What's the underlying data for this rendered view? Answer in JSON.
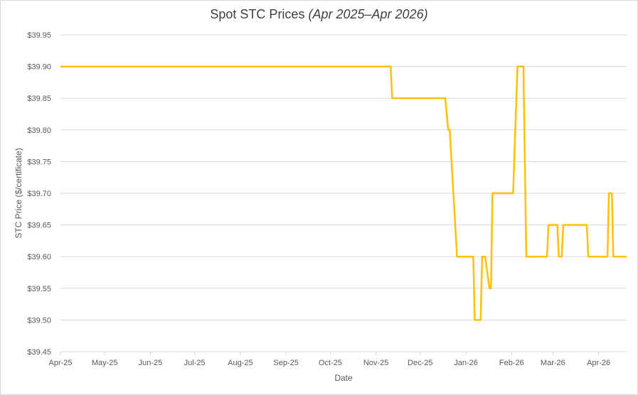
{
  "chart_data": {
    "type": "line",
    "title": "Spot STC Prices",
    "subtitle": "(Apr 2025–Apr 2026)",
    "xlabel": "Date",
    "ylabel": "STC Price ($/certificate)",
    "ylim": [
      39.45,
      39.95
    ],
    "y_ticks": [
      39.45,
      39.5,
      39.55,
      39.6,
      39.65,
      39.7,
      39.75,
      39.8,
      39.85,
      39.9,
      39.95
    ],
    "y_tick_labels": [
      "$39.45",
      "$39.50",
      "$39.55",
      "$39.60",
      "$39.65",
      "$39.70",
      "$39.75",
      "$39.80",
      "$39.85",
      "$39.90",
      "$39.95"
    ],
    "x_ticks": [
      "2025-04-01",
      "2025-05-01",
      "2025-06-01",
      "2025-07-01",
      "2025-08-01",
      "2025-09-01",
      "2025-10-01",
      "2025-11-01",
      "2025-12-01",
      "2026-01-01",
      "2026-02-01",
      "2026-03-01",
      "2026-04-01"
    ],
    "x_tick_labels": [
      "Apr-25",
      "May-25",
      "Jun-25",
      "Jul-25",
      "Aug-25",
      "Sep-25",
      "Oct-25",
      "Nov-25",
      "Dec-25",
      "Jan-26",
      "Feb-26",
      "Mar-26",
      "Apr-26"
    ],
    "xlim": [
      "2025-04-01",
      "2026-04-20"
    ],
    "grid": true,
    "line_color": "#FFC000",
    "series": [
      {
        "x": [
          "2025-04-01",
          "2025-11-11",
          "2025-11-12",
          "2025-12-18",
          "2025-12-20",
          "2025-12-21",
          "2025-12-26",
          "2025-12-27",
          "2026-01-06",
          "2026-01-07",
          "2026-01-11",
          "2026-01-12",
          "2026-01-14",
          "2026-01-17",
          "2026-01-18",
          "2026-01-19",
          "2026-02-02",
          "2026-02-05",
          "2026-02-09",
          "2026-02-11",
          "2026-02-12",
          "2026-02-25",
          "2026-02-26",
          "2026-03-04",
          "2026-03-05",
          "2026-03-07",
          "2026-03-08",
          "2026-03-24",
          "2026-03-25",
          "2026-04-07",
          "2026-04-08",
          "2026-04-10",
          "2026-04-11",
          "2026-04-20"
        ],
        "y": [
          39.9,
          39.9,
          39.85,
          39.85,
          39.8,
          39.8,
          39.6,
          39.6,
          39.6,
          39.5,
          39.5,
          39.6,
          39.6,
          39.55,
          39.55,
          39.7,
          39.7,
          39.9,
          39.9,
          39.6,
          39.6,
          39.6,
          39.65,
          39.65,
          39.6,
          39.6,
          39.65,
          39.65,
          39.6,
          39.6,
          39.7,
          39.7,
          39.6,
          39.6
        ]
      }
    ]
  }
}
